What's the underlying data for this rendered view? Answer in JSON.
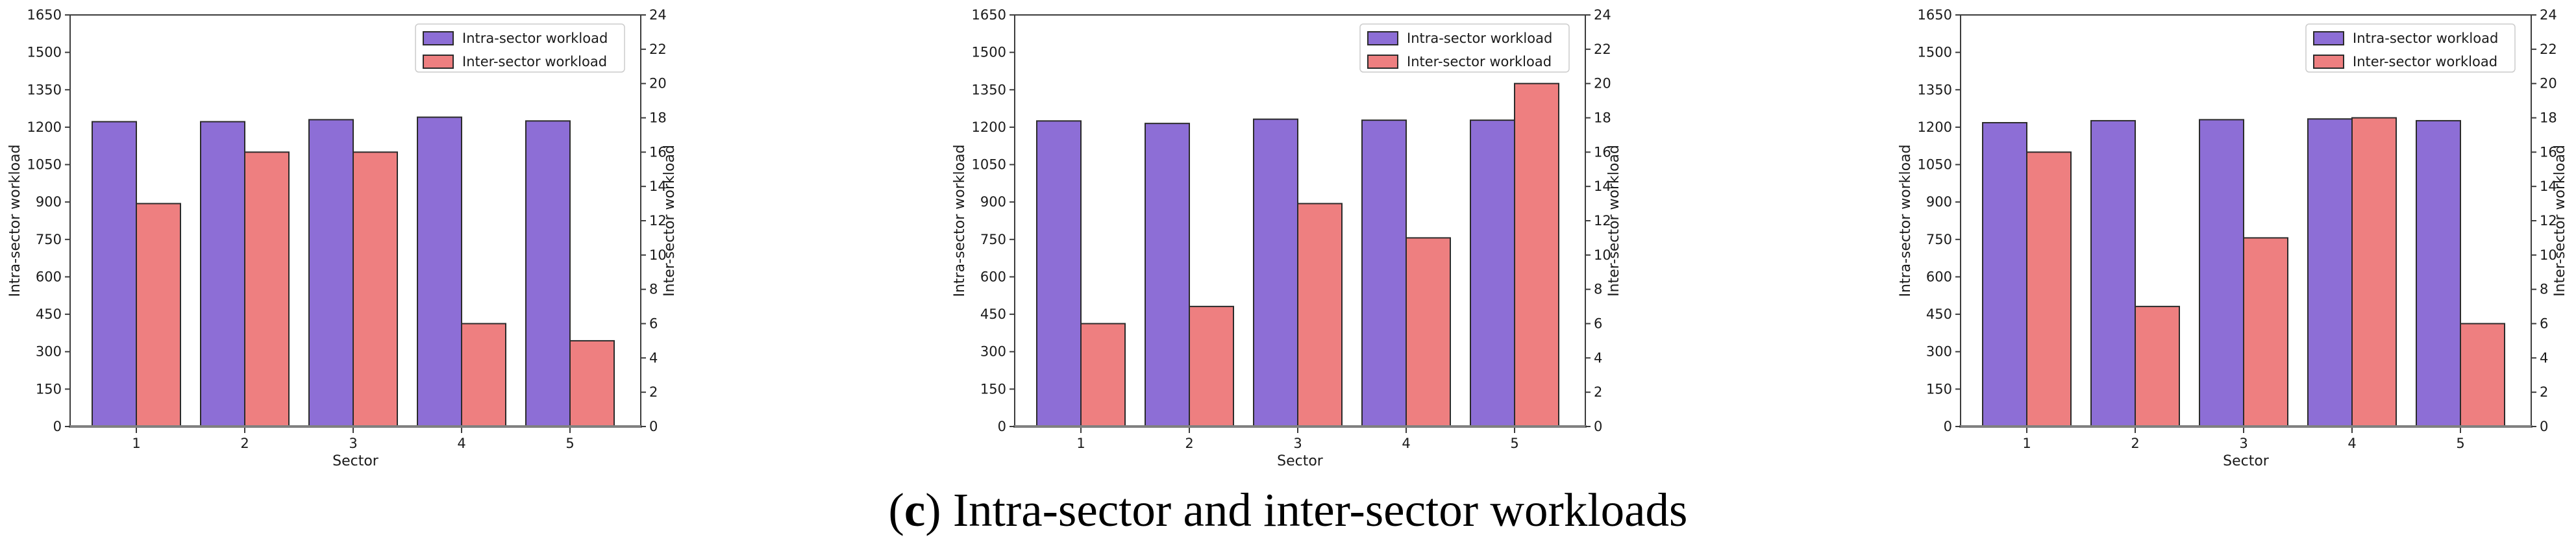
{
  "caption": {
    "open": "(",
    "bold": "c",
    "rest": ") Intra-sector and inter-sector workloads"
  },
  "colors": {
    "intra_bar": "#8D6ED6",
    "inter_bar": "#EE7F80",
    "bar_edge": "#2B2B2B",
    "spine": "#3C3C3C",
    "baseline": "#808080",
    "text": "#1A1A1A",
    "legend_border": "#CCCCCC",
    "background": "#FFFFFF"
  },
  "chart_data": [
    {
      "type": "bar",
      "panel": "left",
      "categories": [
        "1",
        "2",
        "3",
        "4",
        "5"
      ],
      "xlabel": "Sector",
      "left_axis": {
        "label": "Intra-sector workload",
        "min": 0,
        "max": 1650,
        "ticks": [
          0,
          150,
          300,
          450,
          600,
          750,
          900,
          1050,
          1200,
          1350,
          1500,
          1650
        ]
      },
      "right_axis": {
        "label": "Inter-sector workload",
        "min": 0,
        "max": 24,
        "ticks": [
          0,
          2,
          4,
          6,
          8,
          10,
          12,
          14,
          16,
          18,
          20,
          22,
          24
        ]
      },
      "series": [
        {
          "name": "Intra-sector workload",
          "axis": "left",
          "color": "#8D6ED6",
          "values": [
            1222,
            1222,
            1230,
            1240,
            1225
          ]
        },
        {
          "name": "Inter-sector workload",
          "axis": "right",
          "color": "#EE7F80",
          "values": [
            13,
            16,
            16,
            6,
            5
          ]
        }
      ],
      "legend": {
        "position": "upper-right",
        "entries": [
          "Intra-sector workload",
          "Inter-sector workload"
        ]
      },
      "grid": false
    },
    {
      "type": "bar",
      "panel": "middle",
      "categories": [
        "1",
        "2",
        "3",
        "4",
        "5"
      ],
      "xlabel": "Sector",
      "left_axis": {
        "label": "Intra-sector workload",
        "min": 0,
        "max": 1650,
        "ticks": [
          0,
          150,
          300,
          450,
          600,
          750,
          900,
          1050,
          1200,
          1350,
          1500,
          1650
        ]
      },
      "right_axis": {
        "label": "Inter-sector workload",
        "min": 0,
        "max": 24,
        "ticks": [
          0,
          2,
          4,
          6,
          8,
          10,
          12,
          14,
          16,
          18,
          20,
          22,
          24
        ]
      },
      "series": [
        {
          "name": "Intra-sector workload",
          "axis": "left",
          "color": "#8D6ED6",
          "values": [
            1225,
            1215,
            1232,
            1228,
            1228
          ]
        },
        {
          "name": "Inter-sector workload",
          "axis": "right",
          "color": "#EE7F80",
          "values": [
            6,
            7,
            13,
            11,
            20
          ]
        }
      ],
      "legend": {
        "position": "upper-right",
        "entries": [
          "Intra-sector workload",
          "Inter-sector workload"
        ]
      },
      "grid": false
    },
    {
      "type": "bar",
      "panel": "right",
      "categories": [
        "1",
        "2",
        "3",
        "4",
        "5"
      ],
      "xlabel": "Sector",
      "left_axis": {
        "label": "Intra-sector workload",
        "min": 0,
        "max": 1650,
        "ticks": [
          0,
          150,
          300,
          450,
          600,
          750,
          900,
          1050,
          1200,
          1350,
          1500,
          1650
        ]
      },
      "right_axis": {
        "label": "Inter-sector workload",
        "min": 0,
        "max": 24,
        "ticks": [
          0,
          2,
          4,
          6,
          8,
          10,
          12,
          14,
          16,
          18,
          20,
          22,
          24
        ]
      },
      "series": [
        {
          "name": "Intra-sector workload",
          "axis": "left",
          "color": "#8D6ED6",
          "values": [
            1218,
            1226,
            1230,
            1233,
            1226
          ]
        },
        {
          "name": "Inter-sector workload",
          "axis": "right",
          "color": "#EE7F80",
          "values": [
            16,
            7,
            11,
            18,
            6
          ]
        }
      ],
      "legend": {
        "position": "upper-right",
        "entries": [
          "Intra-sector workload",
          "Inter-sector workload"
        ]
      },
      "grid": false
    }
  ]
}
